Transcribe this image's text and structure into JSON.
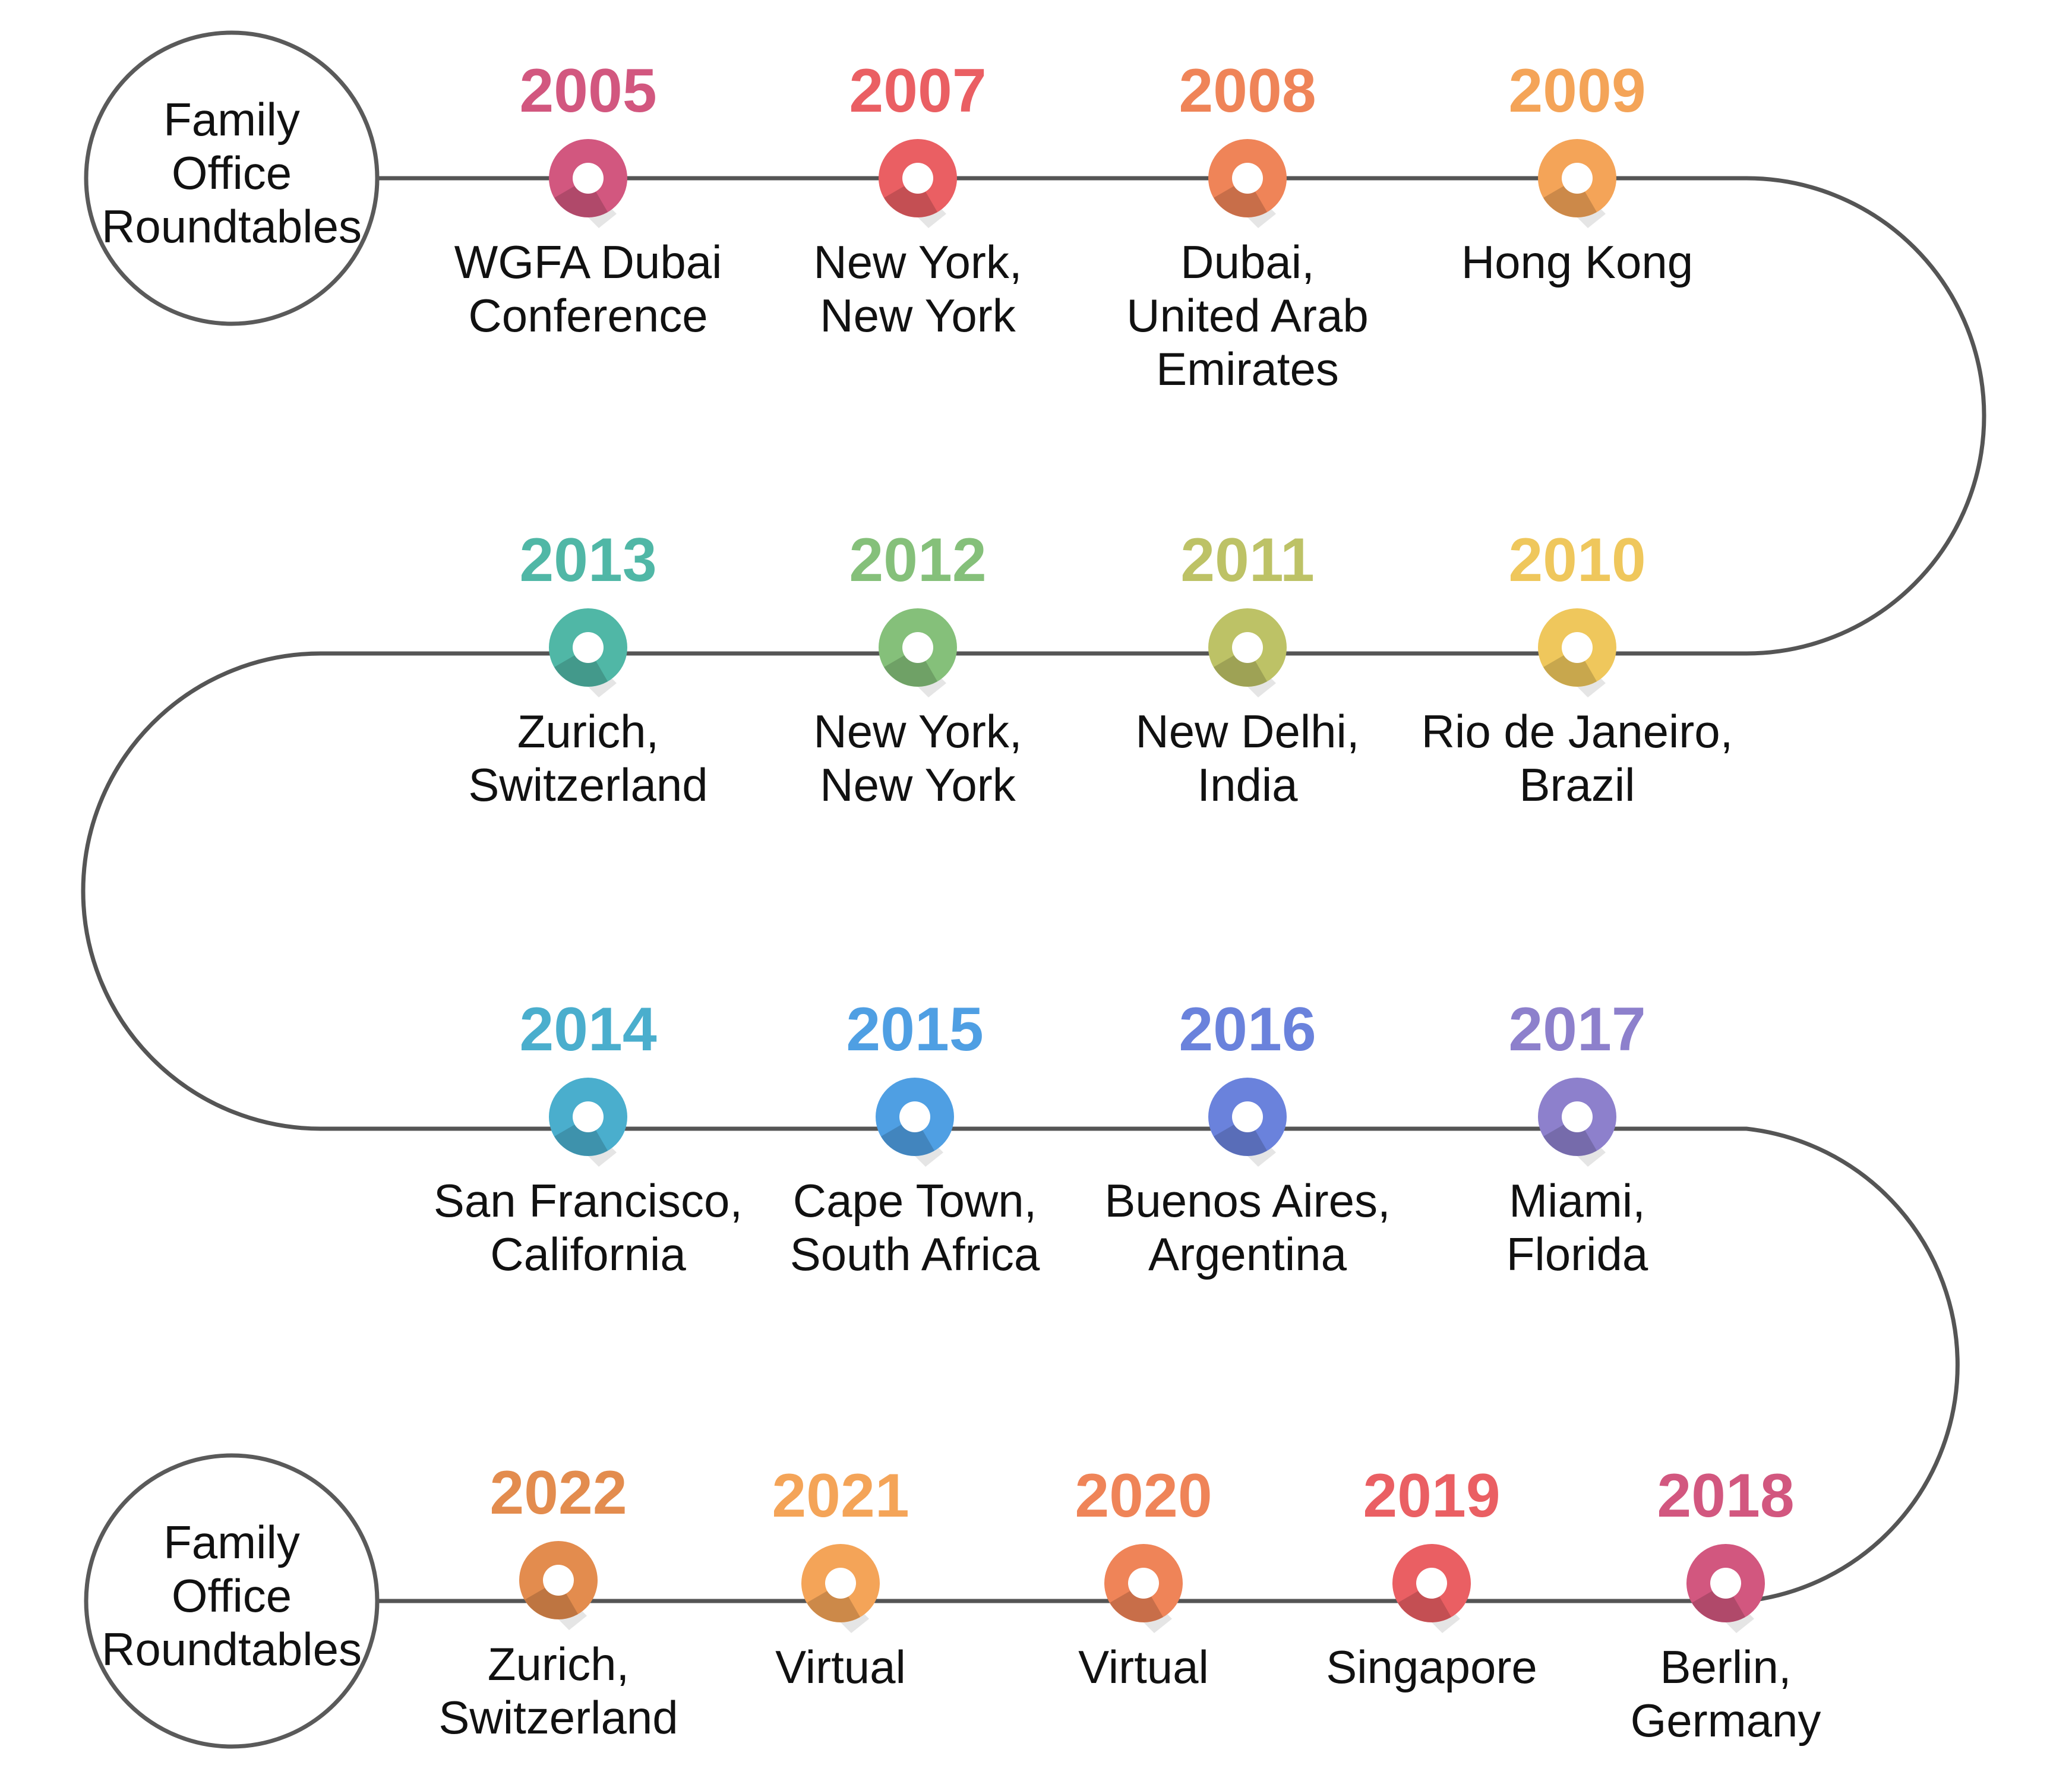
{
  "start_label": [
    "Family",
    "Office",
    "Roundtables"
  ],
  "end_label": [
    "Family",
    "Office",
    "Roundtables"
  ],
  "colors": {
    "line": "#555555",
    "start_circle_stroke": "#5a5a5a"
  },
  "events": [
    {
      "year": "2005",
      "location": [
        "WGFA Dubai",
        "Conference"
      ],
      "color": "#d2577f"
    },
    {
      "year": "2007",
      "location": [
        "New York,",
        "New York"
      ],
      "color": "#ea5f63"
    },
    {
      "year": "2008",
      "location": [
        "Dubai,",
        "United Arab",
        "Emirates"
      ],
      "color": "#ef8458"
    },
    {
      "year": "2009",
      "location": [
        "Hong Kong"
      ],
      "color": "#f4a458"
    },
    {
      "year": "2010",
      "location": [
        "Rio de Janeiro,",
        "Brazil"
      ],
      "color": "#efc75c"
    },
    {
      "year": "2011",
      "location": [
        "New Delhi,",
        "India"
      ],
      "color": "#bdc266"
    },
    {
      "year": "2012",
      "location": [
        "New York,",
        "New York"
      ],
      "color": "#85c07a"
    },
    {
      "year": "2013",
      "location": [
        "Zurich,",
        "Switzerland"
      ],
      "color": "#50b7a6"
    },
    {
      "year": "2014",
      "location": [
        "San Francisco,",
        "California"
      ],
      "color": "#4aaecd"
    },
    {
      "year": "2015",
      "location": [
        "Cape Town,",
        "South Africa"
      ],
      "color": "#4f9fe3"
    },
    {
      "year": "2016",
      "location": [
        "Buenos Aires,",
        "Argentina"
      ],
      "color": "#6a82dc"
    },
    {
      "year": "2017",
      "location": [
        "Miami,",
        "Florida"
      ],
      "color": "#8d80cc"
    },
    {
      "year": "2018",
      "location": [
        "Berlin,",
        "Germany"
      ],
      "color": "#d2577f"
    },
    {
      "year": "2019",
      "location": [
        "Singapore"
      ],
      "color": "#ea5f63"
    },
    {
      "year": "2020",
      "location": [
        "Virtual"
      ],
      "color": "#ef8458"
    },
    {
      "year": "2021",
      "location": [
        "Virtual"
      ],
      "color": "#f4a458"
    },
    {
      "year": "2022",
      "location": [
        "Zurich,",
        "Switzerland"
      ],
      "color": "#e38c4e"
    }
  ]
}
